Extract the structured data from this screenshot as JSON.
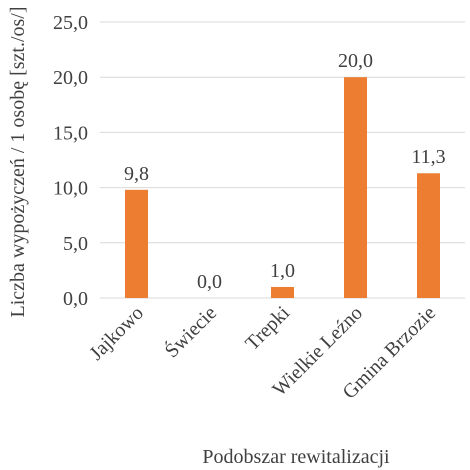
{
  "chart_data": {
    "type": "bar",
    "categories": [
      "Jajkowo",
      "Świecie",
      "Trepki",
      "Wielkie Leźno",
      "Gmina Brzozie"
    ],
    "values": [
      9.8,
      0.0,
      1.0,
      20.0,
      11.3
    ],
    "data_labels": [
      "9,8",
      "0,0",
      "1,0",
      "20,0",
      "11,3"
    ],
    "xlabel": "Podobszar rewitalizacji",
    "ylabel": "Liczba wypożyczeń / 1 osobę [szt./os/]",
    "ylim": [
      0,
      25
    ],
    "yticks": [
      0,
      5,
      10,
      15,
      20,
      25
    ],
    "ytick_labels": [
      "0,0",
      "5,0",
      "10,0",
      "15,0",
      "20,0",
      "25,0"
    ],
    "grid": true,
    "bar_color": "#ED7D31",
    "grid_color": "#D9D9D9"
  }
}
